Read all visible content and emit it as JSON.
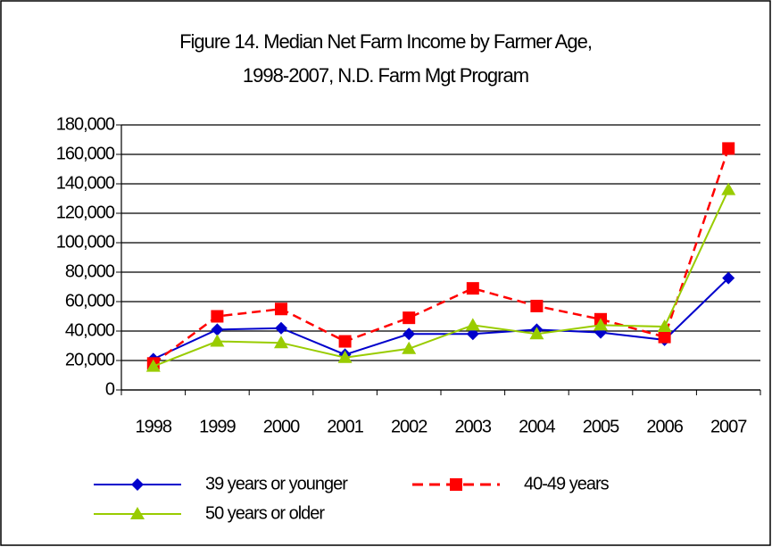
{
  "chart_data": {
    "type": "line",
    "title": "Figure 14. Median Net Farm Income by Farmer Age,",
    "subtitle": "1998-2007, N.D. Farm Mgt Program",
    "categories": [
      "1998",
      "1999",
      "2000",
      "2001",
      "2002",
      "2003",
      "2004",
      "2005",
      "2006",
      "2007"
    ],
    "series": [
      {
        "name": "39 years or younger",
        "color": "#0000cc",
        "marker": "diamond",
        "dashed": false,
        "values": [
          21000,
          41000,
          42000,
          24000,
          38000,
          38000,
          41000,
          39000,
          34000,
          76000
        ]
      },
      {
        "name": "40-49 years",
        "color": "#ff0000",
        "marker": "square",
        "dashed": true,
        "values": [
          18000,
          50000,
          55000,
          33000,
          49000,
          69000,
          57000,
          48000,
          36000,
          164000
        ]
      },
      {
        "name": "50 years or older",
        "color": "#99cc00",
        "marker": "triangle",
        "dashed": false,
        "values": [
          16000,
          33000,
          32000,
          22000,
          28000,
          44000,
          38000,
          44000,
          43000,
          136000
        ]
      }
    ],
    "ylim": [
      0,
      180000
    ],
    "yticks": [
      0,
      {
        "value": 20000,
        "label": "20,000"
      },
      {
        "value": 40000,
        "label": "40,000"
      },
      {
        "value": 60000,
        "label": "60,000"
      },
      {
        "value": 80000,
        "label": "80,000"
      },
      {
        "value": 100000,
        "label": "100,000"
      },
      {
        "value": 120000,
        "label": "120,000"
      },
      {
        "value": 140000,
        "label": "140,000"
      },
      {
        "value": 160000,
        "label": "160,000"
      },
      {
        "value": 180000,
        "label": "180,000"
      }
    ],
    "grid": true
  }
}
